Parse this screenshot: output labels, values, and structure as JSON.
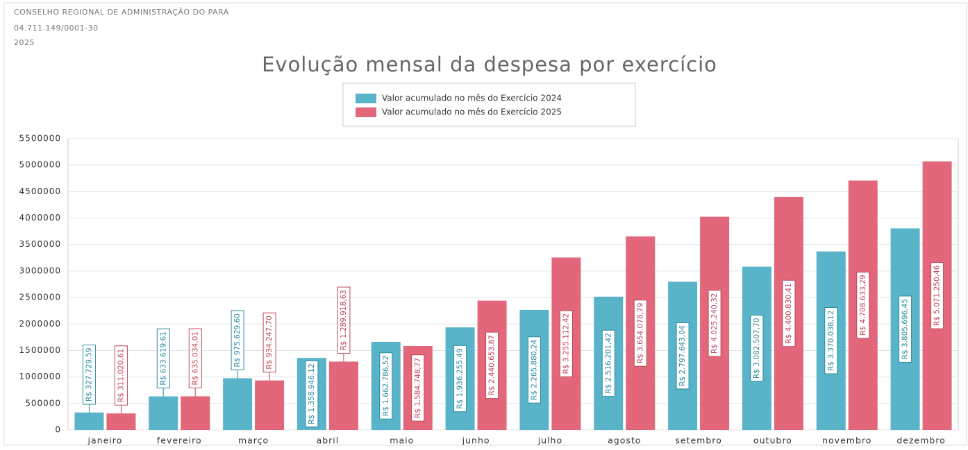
{
  "chart_data": {
    "type": "bar",
    "header": [
      "CONSELHO REGIONAL DE ADMINISTRAÇÃO DO PARÁ",
      "04.711.149/0001-30",
      "2025"
    ],
    "title": "Evolução mensal da despesa por exercício",
    "categories": [
      "janeiro",
      "fevereiro",
      "março",
      "abril",
      "maio",
      "junho",
      "julho",
      "agosto",
      "setembro",
      "outubro",
      "novembro",
      "dezembro"
    ],
    "series": [
      {
        "name": "Valor acumulado no mês do Exercício 2024",
        "color": "#5ab4c9",
        "values": [
          327729.59,
          633619.61,
          975629.6,
          1358946.12,
          1662786.52,
          1936255.49,
          2265880.24,
          2516201.42,
          2797643.04,
          3082507.7,
          3370038.12,
          3805696.45
        ],
        "value_labels": [
          "R$ 327.729,59",
          "R$ 633.619,61",
          "R$ 975.629,60",
          "R$ 1.358.946,12",
          "R$ 1.662.786,52",
          "R$ 1.936.255,49",
          "R$ 2.265.880,24",
          "R$ 2.516.201,42",
          "R$ 2.797.643,04",
          "R$ 3.082.507,70",
          "R$ 3.370.038,12",
          "R$ 3.805.696,45"
        ]
      },
      {
        "name": "Valor acumulado no mês do Exercício 2025",
        "color": "#e2677b",
        "values": [
          311020.61,
          635034.01,
          934247.7,
          1289918.63,
          1584748.77,
          2440653.87,
          3255112.42,
          3654078.79,
          4025240.32,
          4400830.41,
          4708633.29,
          5071250.46
        ],
        "value_labels": [
          "R$ 311.020,61",
          "R$ 635.034,01",
          "R$ 934.247,70",
          "R$ 1.289.918,63",
          "R$ 1.584.748,77",
          "R$ 2.440.653,87",
          "R$ 3.255.112,42",
          "R$ 3.654.078,79",
          "R$ 4.025.240,32",
          "R$ 4.400.830,41",
          "R$ 4.708.633,29",
          "R$ 5.071.250,46"
        ]
      }
    ],
    "ylim": [
      0,
      5500000
    ],
    "yticks": [
      0,
      500000,
      1000000,
      1500000,
      2000000,
      2500000,
      3000000,
      3500000,
      4000000,
      4500000,
      5000000,
      5500000
    ],
    "grid": true,
    "legend": "top"
  }
}
